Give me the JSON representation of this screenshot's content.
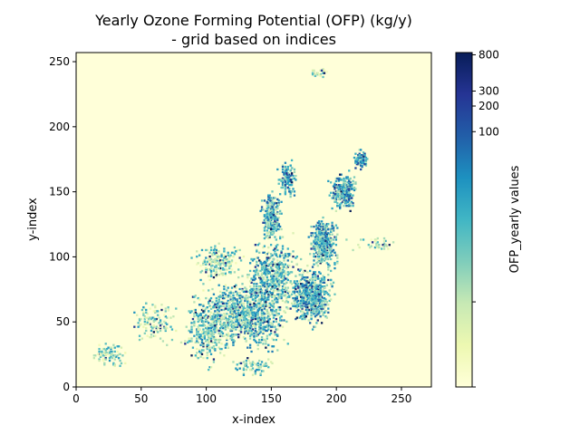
{
  "chart_data": {
    "type": "heatmap",
    "title_line1": "Yearly Ozone Forming Potential (OFP) (kg/y)",
    "title_line2": "- grid based on indices",
    "xlabel": "x-index",
    "ylabel": "y-index",
    "xlim": [
      0,
      273
    ],
    "ylim": [
      0,
      257
    ],
    "x_ticks": [
      0,
      50,
      100,
      150,
      200,
      250
    ],
    "y_ticks": [
      0,
      50,
      100,
      150,
      200,
      250
    ],
    "background_color": "#ffffd9",
    "colorbar": {
      "label": "OFP_yearly values",
      "scale": "symlog",
      "range": [
        0,
        850
      ],
      "tick_values": [
        800,
        300,
        200,
        100
      ],
      "colors": [
        "#ffffd9",
        "#edf8b1",
        "#c7e9b4",
        "#7fcdbb",
        "#41b6c4",
        "#1d91c0",
        "#225ea8",
        "#253494",
        "#081d58"
      ]
    },
    "clusters": [
      {
        "x": 130,
        "y": 55,
        "w": 45,
        "h": 38,
        "n": 900,
        "intensity": 0.45
      },
      {
        "x": 150,
        "y": 85,
        "w": 30,
        "h": 40,
        "n": 500,
        "intensity": 0.45
      },
      {
        "x": 150,
        "y": 130,
        "w": 12,
        "h": 30,
        "n": 260,
        "intensity": 0.5
      },
      {
        "x": 162,
        "y": 160,
        "w": 10,
        "h": 20,
        "n": 120,
        "intensity": 0.55
      },
      {
        "x": 180,
        "y": 70,
        "w": 24,
        "h": 32,
        "n": 550,
        "intensity": 0.5
      },
      {
        "x": 190,
        "y": 110,
        "w": 16,
        "h": 30,
        "n": 400,
        "intensity": 0.5
      },
      {
        "x": 205,
        "y": 150,
        "w": 14,
        "h": 22,
        "n": 260,
        "intensity": 0.55
      },
      {
        "x": 218,
        "y": 175,
        "w": 8,
        "h": 12,
        "n": 80,
        "intensity": 0.55
      },
      {
        "x": 100,
        "y": 45,
        "w": 26,
        "h": 40,
        "n": 320,
        "intensity": 0.4
      },
      {
        "x": 110,
        "y": 95,
        "w": 28,
        "h": 22,
        "n": 200,
        "intensity": 0.35
      },
      {
        "x": 60,
        "y": 50,
        "w": 26,
        "h": 26,
        "n": 120,
        "intensity": 0.35
      },
      {
        "x": 25,
        "y": 25,
        "w": 18,
        "h": 14,
        "n": 90,
        "intensity": 0.35
      },
      {
        "x": 230,
        "y": 110,
        "w": 28,
        "h": 8,
        "n": 40,
        "intensity": 0.3
      },
      {
        "x": 185,
        "y": 240,
        "w": 14,
        "h": 6,
        "n": 30,
        "intensity": 0.3
      },
      {
        "x": 135,
        "y": 15,
        "w": 22,
        "h": 12,
        "n": 70,
        "intensity": 0.4
      }
    ]
  }
}
